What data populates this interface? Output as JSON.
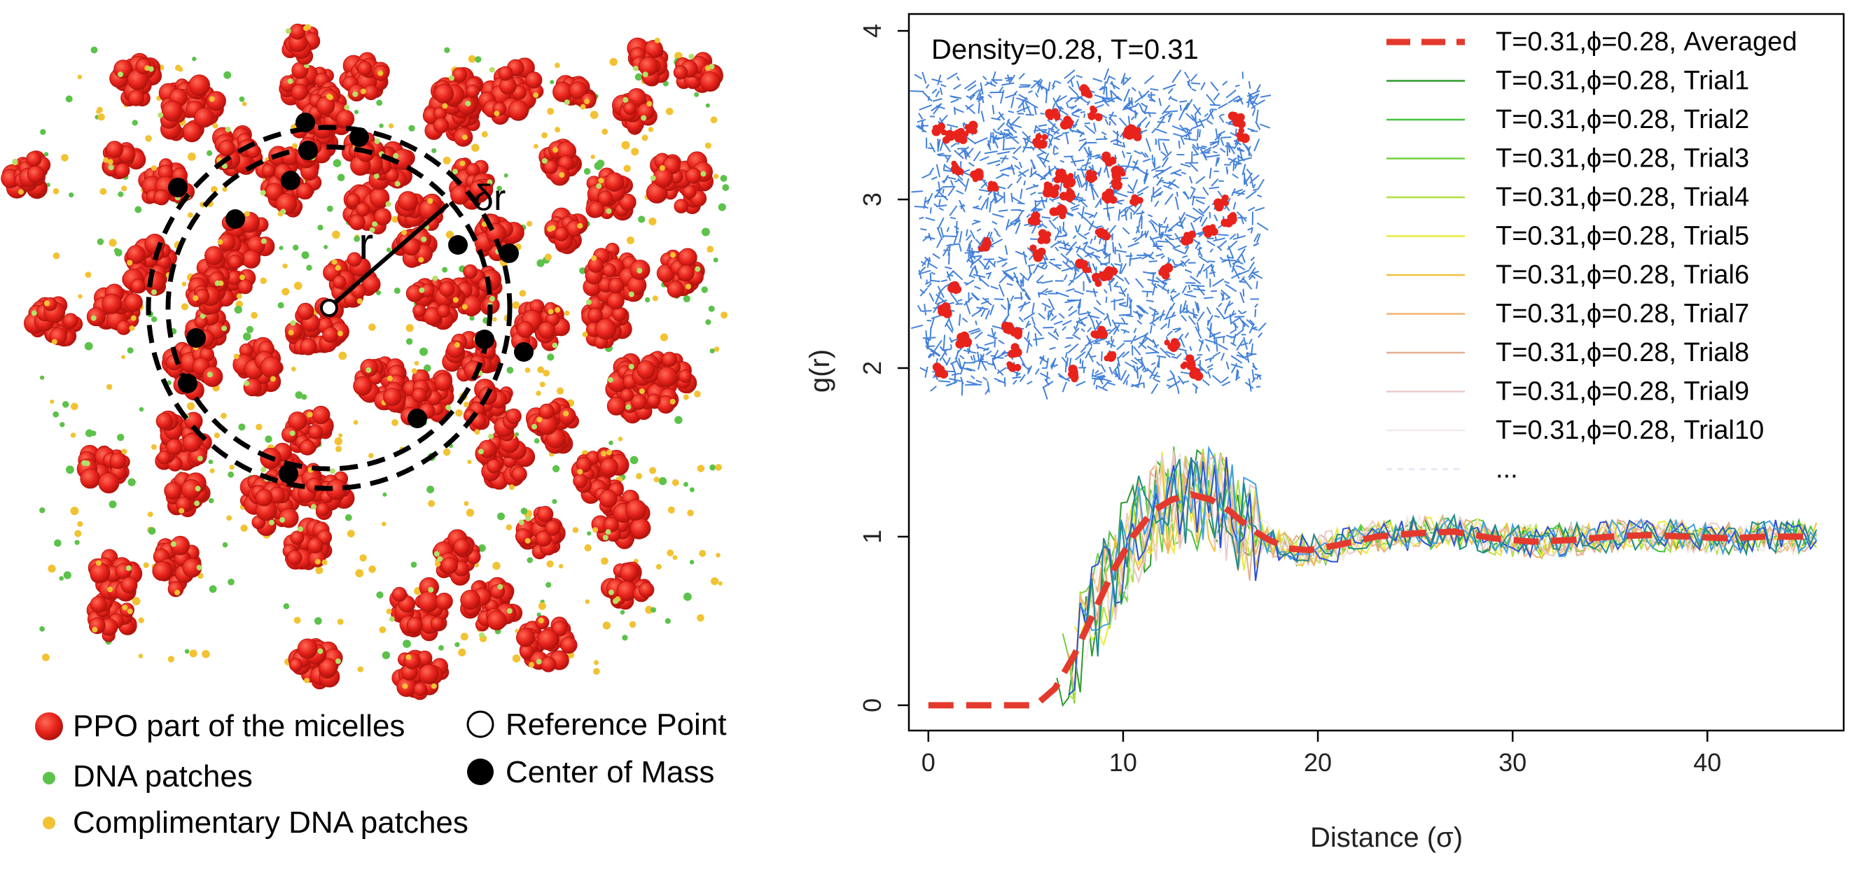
{
  "colors": {
    "micelle": "#e8231c",
    "micelle_dark": "#b3120c",
    "dna": "#5cc24a",
    "comp_dna": "#f2c232",
    "network": "#2f73d6",
    "averaged": "#e43a2e"
  },
  "schematic": {
    "label_r": "r",
    "label_dr": "δr",
    "legend": [
      {
        "text": "PPO part of the micelles",
        "marker": "red-circle"
      },
      {
        "text": "DNA patches",
        "marker": "green-dot"
      },
      {
        "text": "Complimentary DNA patches",
        "marker": "yellow-dot"
      },
      {
        "text": "Reference Point",
        "marker": "open-circle"
      },
      {
        "text": "Center of Mass",
        "marker": "black-circle"
      }
    ]
  },
  "chart_data": {
    "type": "line",
    "title": "",
    "xlabel": "Distance (σ)",
    "ylabel": "g(r)",
    "xlim": [
      -1,
      47
    ],
    "ylim": [
      -0.15,
      4.1
    ],
    "xticks": [
      0,
      10,
      20,
      30,
      40
    ],
    "yticks": [
      0,
      1,
      2,
      3,
      4
    ],
    "grid": false,
    "inset_label": "Density=0.28, T=0.31",
    "legend_position": "top-right",
    "legend": [
      {
        "text": "T=0.31,ϕ=0.28, Averaged",
        "color": "#e43a2e",
        "dashed": true
      },
      {
        "text": "T=0.31,ϕ=0.28, Trial1",
        "color": "#2e9a2e"
      },
      {
        "text": "T=0.31,ϕ=0.28, Trial2",
        "color": "#46c23c"
      },
      {
        "text": "T=0.31,ϕ=0.28, Trial3",
        "color": "#70d040"
      },
      {
        "text": "T=0.31,ϕ=0.28, Trial4",
        "color": "#b2e040"
      },
      {
        "text": "T=0.31,ϕ=0.28, Trial5",
        "color": "#ecec3a"
      },
      {
        "text": "T=0.31,ϕ=0.28, Trial6",
        "color": "#f0c040"
      },
      {
        "text": "T=0.31,ϕ=0.28, Trial7",
        "color": "#f2b070"
      },
      {
        "text": "T=0.31,ϕ=0.28, Trial8",
        "color": "#e2b094"
      },
      {
        "text": "T=0.31,ϕ=0.28, Trial9",
        "color": "#eacaca"
      },
      {
        "text": "T=0.31,ϕ=0.28, Trial10",
        "color": "#f2eaea"
      },
      {
        "text": "...",
        "color": "#e0e4f4",
        "dashed": true
      }
    ],
    "series": [
      {
        "name": "T=0.31,ϕ=0.28, Averaged",
        "x": [
          0,
          2,
          4,
          5.5,
          6.5,
          7.5,
          8.5,
          9.5,
          10.5,
          11.5,
          12.5,
          13.5,
          14.5,
          15.5,
          16.5,
          17.5,
          18.5,
          19.5,
          21,
          23,
          25,
          27,
          29,
          31,
          33,
          35,
          37,
          39,
          41,
          43,
          45
        ],
        "y": [
          0,
          0,
          0,
          0,
          0.1,
          0.3,
          0.55,
          0.8,
          1.0,
          1.15,
          1.22,
          1.25,
          1.22,
          1.15,
          1.05,
          0.98,
          0.93,
          0.92,
          0.95,
          1.0,
          1.02,
          1.03,
          0.99,
          0.97,
          0.98,
          1.0,
          1.01,
          1.0,
          0.99,
          1.0,
          1.0
        ]
      }
    ]
  }
}
